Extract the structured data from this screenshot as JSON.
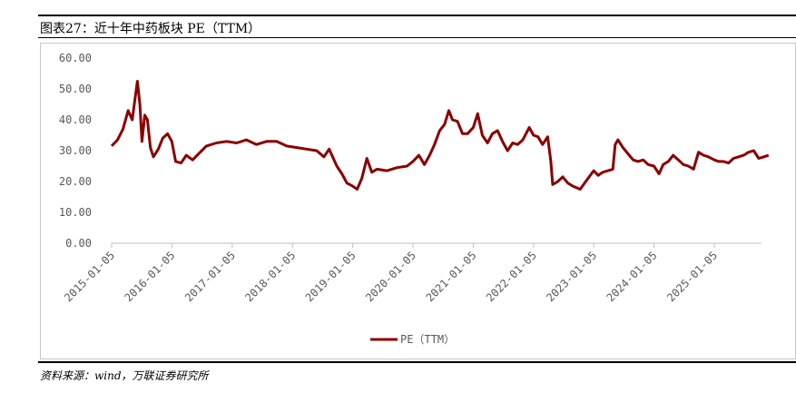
{
  "figure": {
    "title": "图表27：近十年中药板块 PE（TTM）",
    "source": "资料来源：wind，万联证券研究所"
  },
  "chart_data": {
    "type": "line",
    "ylim": [
      0,
      60
    ],
    "y_ticks": [
      "0.00",
      "10.00",
      "20.00",
      "30.00",
      "40.00",
      "50.00",
      "60.00"
    ],
    "x_ticks": [
      "2015-01-05",
      "2016-01-05",
      "2017-01-05",
      "2018-01-05",
      "2019-01-05",
      "2020-01-05",
      "2021-01-05",
      "2022-01-05",
      "2023-01-05",
      "2024-01-05",
      "2025-01-05"
    ],
    "x_start": "2015-01-05",
    "x_end": "2025-11-30",
    "grid": false,
    "legend_position": "bottom",
    "colors": {
      "series": "#8b0000",
      "axis": "#bfbfbf"
    },
    "series": [
      {
        "name": "PE（TTM）",
        "points": [
          [
            "2015-01-05",
            31.5
          ],
          [
            "2015-02-10",
            33.5
          ],
          [
            "2015-03-15",
            37.0
          ],
          [
            "2015-04-15",
            43.0
          ],
          [
            "2015-05-10",
            40.0
          ],
          [
            "2015-05-25",
            46.0
          ],
          [
            "2015-06-10",
            52.5
          ],
          [
            "2015-06-25",
            45.0
          ],
          [
            "2015-07-08",
            33.0
          ],
          [
            "2015-07-25",
            41.5
          ],
          [
            "2015-08-10",
            40.0
          ],
          [
            "2015-08-28",
            31.0
          ],
          [
            "2015-09-15",
            28.0
          ],
          [
            "2015-10-15",
            30.5
          ],
          [
            "2015-11-10",
            34.0
          ],
          [
            "2015-12-10",
            35.5
          ],
          [
            "2016-01-05",
            33.0
          ],
          [
            "2016-01-28",
            26.5
          ],
          [
            "2016-03-01",
            26.0
          ],
          [
            "2016-04-01",
            28.5
          ],
          [
            "2016-05-10",
            27.0
          ],
          [
            "2016-06-15",
            29.0
          ],
          [
            "2016-08-01",
            31.5
          ],
          [
            "2016-10-01",
            32.5
          ],
          [
            "2016-12-01",
            33.0
          ],
          [
            "2017-02-01",
            32.5
          ],
          [
            "2017-04-01",
            33.5
          ],
          [
            "2017-06-01",
            32.0
          ],
          [
            "2017-08-01",
            33.0
          ],
          [
            "2017-10-01",
            33.0
          ],
          [
            "2017-12-01",
            31.5
          ],
          [
            "2018-02-01",
            31.0
          ],
          [
            "2018-04-01",
            30.5
          ],
          [
            "2018-06-01",
            30.0
          ],
          [
            "2018-07-15",
            28.0
          ],
          [
            "2018-08-15",
            30.5
          ],
          [
            "2018-10-01",
            25.0
          ],
          [
            "2018-11-01",
            22.5
          ],
          [
            "2018-12-01",
            19.5
          ],
          [
            "2019-01-05",
            18.5
          ],
          [
            "2019-02-01",
            17.5
          ],
          [
            "2019-03-01",
            21.0
          ],
          [
            "2019-04-01",
            27.5
          ],
          [
            "2019-05-01",
            23.0
          ],
          [
            "2019-06-01",
            24.0
          ],
          [
            "2019-08-01",
            23.5
          ],
          [
            "2019-10-01",
            24.5
          ],
          [
            "2019-12-01",
            25.0
          ],
          [
            "2020-01-05",
            26.5
          ],
          [
            "2020-02-10",
            28.5
          ],
          [
            "2020-03-15",
            25.5
          ],
          [
            "2020-04-15",
            28.5
          ],
          [
            "2020-05-15",
            32.0
          ],
          [
            "2020-06-15",
            36.5
          ],
          [
            "2020-07-15",
            38.5
          ],
          [
            "2020-08-10",
            43.0
          ],
          [
            "2020-09-01",
            40.0
          ],
          [
            "2020-10-01",
            39.5
          ],
          [
            "2020-11-01",
            35.5
          ],
          [
            "2020-12-01",
            35.5
          ],
          [
            "2021-01-05",
            37.5
          ],
          [
            "2021-02-01",
            42.0
          ],
          [
            "2021-03-01",
            35.0
          ],
          [
            "2021-04-01",
            32.5
          ],
          [
            "2021-05-01",
            35.5
          ],
          [
            "2021-06-01",
            36.5
          ],
          [
            "2021-07-01",
            33.0
          ],
          [
            "2021-08-01",
            30.0
          ],
          [
            "2021-09-01",
            32.5
          ],
          [
            "2021-10-01",
            32.0
          ],
          [
            "2021-11-01",
            33.5
          ],
          [
            "2021-12-10",
            37.5
          ],
          [
            "2022-01-05",
            35.0
          ],
          [
            "2022-02-01",
            34.5
          ],
          [
            "2022-03-01",
            32.0
          ],
          [
            "2022-04-01",
            34.5
          ],
          [
            "2022-04-20",
            26.5
          ],
          [
            "2022-05-01",
            19.0
          ],
          [
            "2022-06-01",
            20.0
          ],
          [
            "2022-07-01",
            21.5
          ],
          [
            "2022-08-01",
            19.5
          ],
          [
            "2022-09-01",
            18.5
          ],
          [
            "2022-10-15",
            17.5
          ],
          [
            "2022-12-01",
            21.0
          ],
          [
            "2023-01-05",
            23.5
          ],
          [
            "2023-02-01",
            22.0
          ],
          [
            "2023-03-01",
            23.0
          ],
          [
            "2023-04-01",
            23.5
          ],
          [
            "2023-05-01",
            24.0
          ],
          [
            "2023-05-15",
            32.0
          ],
          [
            "2023-06-01",
            33.5
          ],
          [
            "2023-07-01",
            31.0
          ],
          [
            "2023-08-01",
            29.0
          ],
          [
            "2023-09-01",
            27.0
          ],
          [
            "2023-10-01",
            26.5
          ],
          [
            "2023-11-01",
            27.0
          ],
          [
            "2023-12-01",
            25.5
          ],
          [
            "2024-01-05",
            25.0
          ],
          [
            "2024-02-05",
            22.5
          ],
          [
            "2024-03-01",
            25.5
          ],
          [
            "2024-04-01",
            26.5
          ],
          [
            "2024-05-01",
            28.5
          ],
          [
            "2024-06-01",
            27.0
          ],
          [
            "2024-07-01",
            25.5
          ],
          [
            "2024-08-01",
            25.0
          ],
          [
            "2024-09-01",
            24.0
          ],
          [
            "2024-10-01",
            29.5
          ],
          [
            "2024-11-01",
            28.5
          ],
          [
            "2024-12-01",
            28.0
          ],
          [
            "2025-01-05",
            27.0
          ],
          [
            "2025-02-01",
            26.5
          ],
          [
            "2025-03-01",
            26.5
          ],
          [
            "2025-04-01",
            26.0
          ],
          [
            "2025-05-01",
            27.5
          ],
          [
            "2025-06-01",
            28.0
          ],
          [
            "2025-07-01",
            28.5
          ],
          [
            "2025-08-01",
            29.5
          ],
          [
            "2025-09-01",
            30.0
          ],
          [
            "2025-10-01",
            27.5
          ],
          [
            "2025-11-01",
            28.0
          ],
          [
            "2025-11-30",
            28.5
          ]
        ]
      }
    ]
  }
}
